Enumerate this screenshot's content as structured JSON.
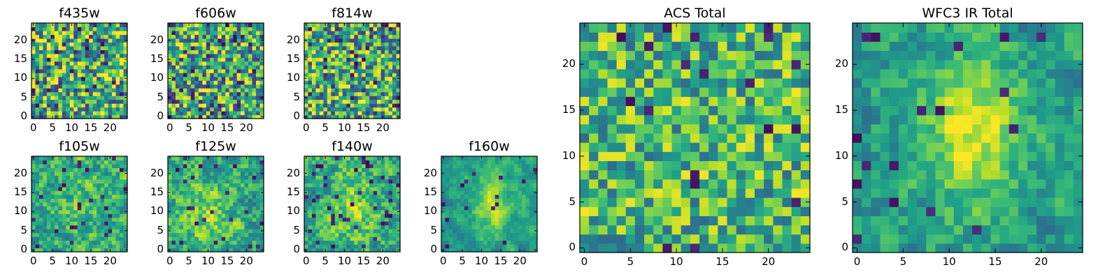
{
  "figure": {
    "background": "#ffffff",
    "colormap": "viridis",
    "colormap_stops": [
      "#440154",
      "#482878",
      "#3e4a89",
      "#31688e",
      "#26828e",
      "#1f9e89",
      "#35b779",
      "#6ece58",
      "#b5de2b",
      "#fde725"
    ]
  },
  "chart_data": [
    {
      "type": "heatmap",
      "title": "f435w",
      "grid_size": 25,
      "x_ticks": [
        0,
        5,
        10,
        15,
        20
      ],
      "y_ticks": [
        0,
        5,
        10,
        15,
        20
      ],
      "xlim": [
        -0.5,
        24.5
      ],
      "ylim": [
        -0.5,
        24.5
      ],
      "value_range": [
        0,
        1
      ],
      "texture": "noisy",
      "seed": 11,
      "smooth": 0,
      "noise": 0.55,
      "darkspots": 0.06,
      "base": 0.62,
      "hotspot": null
    },
    {
      "type": "heatmap",
      "title": "f606w",
      "grid_size": 25,
      "x_ticks": [
        0,
        5,
        10,
        15,
        20
      ],
      "y_ticks": [
        0,
        5,
        10,
        15,
        20
      ],
      "xlim": [
        -0.5,
        24.5
      ],
      "ylim": [
        -0.5,
        24.5
      ],
      "value_range": [
        0,
        1
      ],
      "texture": "noisy",
      "seed": 23,
      "smooth": 0,
      "noise": 0.55,
      "darkspots": 0.06,
      "base": 0.62,
      "hotspot": null
    },
    {
      "type": "heatmap",
      "title": "f814w",
      "grid_size": 25,
      "x_ticks": [
        0,
        5,
        10,
        15,
        20
      ],
      "y_ticks": [
        0,
        5,
        10,
        15,
        20
      ],
      "xlim": [
        -0.5,
        24.5
      ],
      "ylim": [
        -0.5,
        24.5
      ],
      "value_range": [
        0,
        1
      ],
      "texture": "noisy",
      "seed": 37,
      "smooth": 0,
      "noise": 0.55,
      "darkspots": 0.06,
      "base": 0.62,
      "hotspot": null
    },
    {
      "type": "heatmap",
      "title": "f105w",
      "grid_size": 25,
      "x_ticks": [
        0,
        5,
        10,
        15,
        20
      ],
      "y_ticks": [
        0,
        5,
        10,
        15,
        20
      ],
      "xlim": [
        -0.5,
        24.5
      ],
      "ylim": [
        -0.5,
        24.5
      ],
      "value_range": [
        0,
        1
      ],
      "texture": "smooth",
      "seed": 41,
      "smooth": 1,
      "noise": 0.45,
      "darkspots": 0.05,
      "base": 0.6,
      "hotspot": [
        12,
        13,
        0.15
      ]
    },
    {
      "type": "heatmap",
      "title": "f125w",
      "grid_size": 25,
      "x_ticks": [
        0,
        5,
        10,
        15,
        20
      ],
      "y_ticks": [
        0,
        5,
        10,
        15,
        20
      ],
      "xlim": [
        -0.5,
        24.5
      ],
      "ylim": [
        -0.5,
        24.5
      ],
      "value_range": [
        0,
        1
      ],
      "texture": "smooth",
      "seed": 53,
      "smooth": 1,
      "noise": 0.45,
      "darkspots": 0.05,
      "base": 0.62,
      "hotspot": [
        10,
        8,
        0.2
      ]
    },
    {
      "type": "heatmap",
      "title": "f140w",
      "grid_size": 25,
      "x_ticks": [
        0,
        5,
        10,
        15,
        20
      ],
      "y_ticks": [
        0,
        5,
        10,
        15,
        20
      ],
      "xlim": [
        -0.5,
        24.5
      ],
      "ylim": [
        -0.5,
        24.5
      ],
      "value_range": [
        0,
        1
      ],
      "texture": "smooth",
      "seed": 67,
      "smooth": 1,
      "noise": 0.45,
      "darkspots": 0.05,
      "base": 0.62,
      "hotspot": [
        12,
        11,
        0.22
      ]
    },
    {
      "type": "heatmap",
      "title": "f160w",
      "grid_size": 25,
      "x_ticks": [
        0,
        5,
        10,
        15,
        20
      ],
      "y_ticks": [
        0,
        5,
        10,
        15,
        20
      ],
      "xlim": [
        -0.5,
        24.5
      ],
      "ylim": [
        -0.5,
        24.5
      ],
      "value_range": [
        0,
        1
      ],
      "texture": "smooth",
      "seed": 79,
      "smooth": 2,
      "noise": 0.4,
      "darkspots": 0.03,
      "base": 0.55,
      "hotspot": [
        13,
        12,
        0.35
      ]
    },
    {
      "type": "heatmap",
      "title": "ACS Total",
      "grid_size": 25,
      "x_ticks": [
        0,
        5,
        10,
        15,
        20
      ],
      "y_ticks": [
        0,
        5,
        10,
        15,
        20
      ],
      "xlim": [
        -0.5,
        24.5
      ],
      "ylim": [
        -0.5,
        24.5
      ],
      "value_range": [
        0,
        1
      ],
      "texture": "noisy",
      "seed": 97,
      "smooth": 0,
      "noise": 0.4,
      "darkspots": 0.035,
      "base": 0.66,
      "hotspot": null
    },
    {
      "type": "heatmap",
      "title": "WFC3 IR Total",
      "grid_size": 25,
      "x_ticks": [
        0,
        5,
        10,
        15,
        20
      ],
      "y_ticks": [
        0,
        5,
        10,
        15,
        20
      ],
      "xlim": [
        -0.5,
        24.5
      ],
      "ylim": [
        -0.5,
        24.5
      ],
      "value_range": [
        0,
        1
      ],
      "texture": "smooth",
      "seed": 113,
      "smooth": 1,
      "noise": 0.35,
      "darkspots": 0.035,
      "base": 0.55,
      "hotspot": [
        12.5,
        13,
        0.4
      ]
    }
  ]
}
